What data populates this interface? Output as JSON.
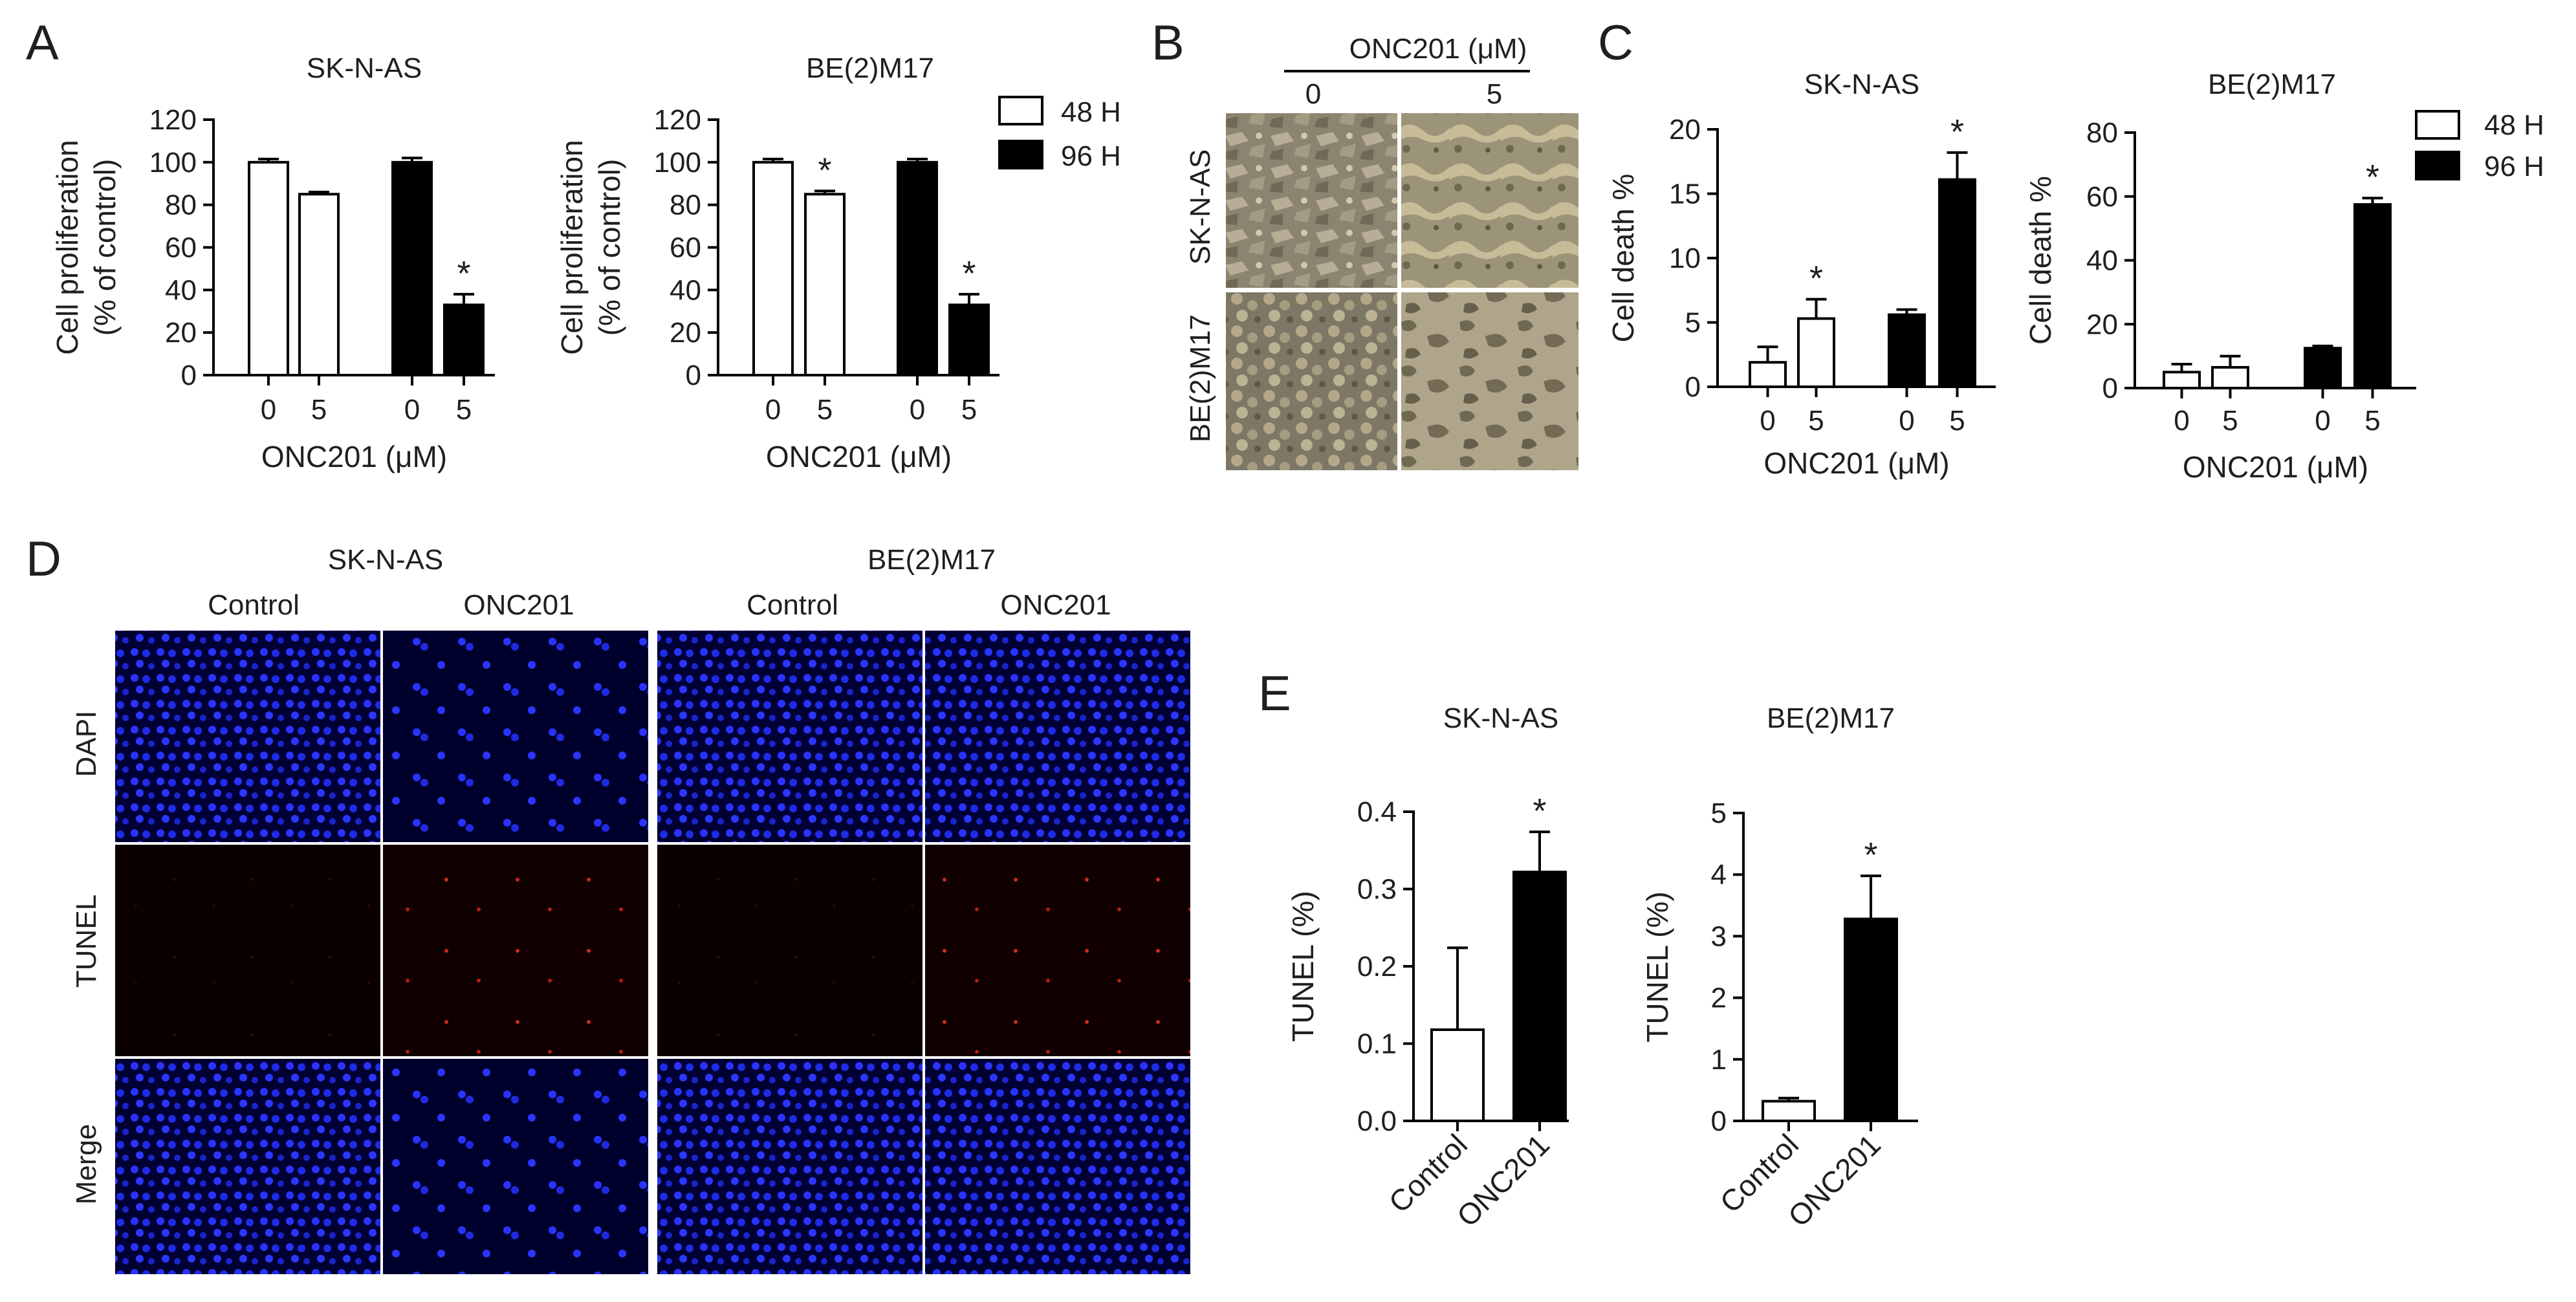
{
  "panels": {
    "A": "A",
    "B": "B",
    "C": "C",
    "D": "D",
    "E": "E"
  },
  "legend": [
    {
      "label": "48 H",
      "color": "#ffffff"
    },
    {
      "label": "96 H",
      "color": "#000000"
    }
  ],
  "chart_data": [
    {
      "id": "A1",
      "type": "bar",
      "title": "SK-N-AS",
      "xlabel": "ONC201 (μM)",
      "ylabel": "Cell proliferation\n(% of control)",
      "ylim": [
        0,
        120
      ],
      "yticks": [
        "0",
        "20",
        "40",
        "60",
        "80",
        "100",
        "120"
      ],
      "categories": [
        "0",
        "5",
        "0",
        "5"
      ],
      "groups": [
        "48 H",
        "48 H",
        "96 H",
        "96 H"
      ],
      "values": [
        100,
        85,
        100,
        33
      ],
      "errors": [
        1.5,
        1,
        2,
        5
      ],
      "significant": [
        false,
        false,
        false,
        true
      ]
    },
    {
      "id": "A2",
      "type": "bar",
      "title": "BE(2)M17",
      "xlabel": "ONC201 (μM)",
      "ylabel": "Cell proliferation\n(% of control)",
      "ylim": [
        0,
        120
      ],
      "yticks": [
        "0",
        "20",
        "40",
        "60",
        "80",
        "100",
        "120"
      ],
      "categories": [
        "0",
        "5",
        "0",
        "5"
      ],
      "groups": [
        "48 H",
        "48 H",
        "96 H",
        "96 H"
      ],
      "values": [
        100,
        85,
        100,
        33
      ],
      "errors": [
        1.5,
        1.5,
        1.5,
        5
      ],
      "significant": [
        false,
        true,
        false,
        true
      ]
    },
    {
      "id": "C1",
      "type": "bar",
      "title": "SK-N-AS",
      "xlabel": "ONC201 (μM)",
      "ylabel": "Cell death %",
      "ylim": [
        0,
        20
      ],
      "yticks": [
        "0",
        "5",
        "10",
        "15",
        "20"
      ],
      "categories": [
        "0",
        "5",
        "0",
        "5"
      ],
      "groups": [
        "48 H",
        "48 H",
        "96 H",
        "96 H"
      ],
      "values": [
        1.9,
        5.3,
        5.6,
        16.1
      ],
      "errors": [
        1.2,
        1.5,
        0.4,
        2.1
      ],
      "significant": [
        false,
        true,
        false,
        true
      ]
    },
    {
      "id": "C2",
      "type": "bar",
      "title": "BE(2)M17",
      "xlabel": "ONC201 (μM)",
      "ylabel": "Cell death %",
      "ylim": [
        0,
        80
      ],
      "yticks": [
        "0",
        "20",
        "40",
        "60",
        "80"
      ],
      "categories": [
        "0",
        "5",
        "0",
        "5"
      ],
      "groups": [
        "48 H",
        "48 H",
        "96 H",
        "96 H"
      ],
      "values": [
        5,
        6.5,
        12.5,
        57.5
      ],
      "errors": [
        2.5,
        3.5,
        0.7,
        2
      ],
      "significant": [
        false,
        false,
        false,
        true
      ]
    },
    {
      "id": "E1",
      "type": "bar",
      "title": "SK-N-AS",
      "xlabel": "",
      "ylabel": "TUNEL (%)",
      "ylim": [
        0,
        0.4
      ],
      "yticks": [
        "0.0",
        "0.1",
        "0.2",
        "0.3",
        "0.4"
      ],
      "categories": [
        "Control",
        "ONC201"
      ],
      "groups": [
        "Control",
        "ONC201"
      ],
      "values": [
        0.118,
        0.322
      ],
      "errors": [
        0.106,
        0.052
      ],
      "significant": [
        false,
        true
      ]
    },
    {
      "id": "E2",
      "type": "bar",
      "title": "BE(2)M17",
      "xlabel": "",
      "ylabel": "TUNEL (%)",
      "ylim": [
        0,
        5
      ],
      "yticks": [
        "0",
        "1",
        "2",
        "3",
        "4",
        "5"
      ],
      "categories": [
        "Control",
        "ONC201"
      ],
      "groups": [
        "Control",
        "ONC201"
      ],
      "values": [
        0.32,
        3.28
      ],
      "errors": [
        0.05,
        0.7
      ],
      "significant": [
        false,
        true
      ]
    }
  ],
  "micrograph_b": {
    "header": "ONC201 (μM)",
    "columns": [
      "0",
      "5"
    ],
    "rows": [
      "SK-N-AS",
      "BE(2)M17"
    ]
  },
  "micrograph_d": {
    "cell_lines": [
      "SK-N-AS",
      "BE(2)M17"
    ],
    "columns": [
      "Control",
      "ONC201",
      "Control",
      "ONC201"
    ],
    "rows": [
      "DAPI",
      "TUNEL",
      "Merge"
    ]
  }
}
